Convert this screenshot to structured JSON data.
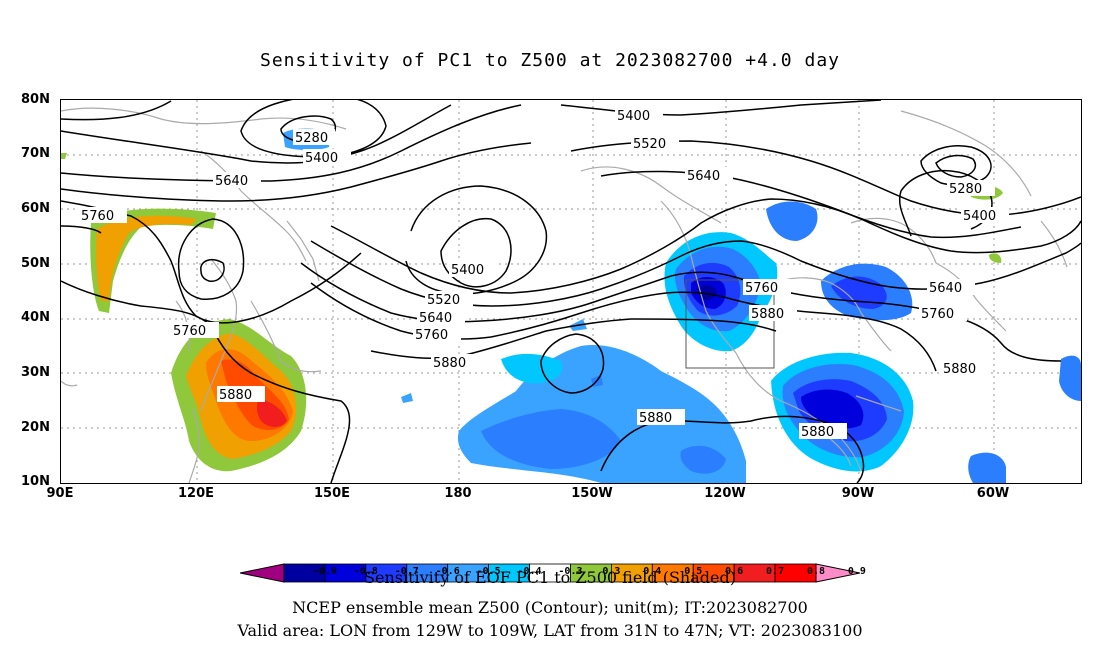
{
  "title": "Sensitivity of PC1 to Z500 at 2023082700 +4.0 day",
  "y_ticks": [
    "80N",
    "70N",
    "60N",
    "50N",
    "40N",
    "30N",
    "20N",
    "10N"
  ],
  "x_ticks": [
    "90E",
    "120E",
    "150E",
    "180",
    "150W",
    "120W",
    "90W",
    "60W"
  ],
  "contour_labels": {
    "c1": "5400",
    "c2": "5280",
    "c3": "5400",
    "c4": "5520",
    "c5": "5640",
    "c6": "5280",
    "c7": "5400",
    "c8": "5640",
    "c9": "5760",
    "c10": "5400",
    "c11": "5520",
    "c12": "5640",
    "c13": "5760",
    "c14": "5880",
    "c15": "5760",
    "c16": "5880",
    "c17": "5640",
    "c18": "5760",
    "c19": "5760",
    "c20": "5880",
    "c21": "5880",
    "c22": "5880",
    "c23": "5880"
  },
  "colorbar": {
    "labels": [
      "-0.9",
      "-0.8",
      "-0.7",
      "-0.6",
      "-0.5",
      "-0.4",
      "-0.3",
      "0.3",
      "0.4",
      "0.5",
      "0.6",
      "0.7",
      "0.8",
      "0.9"
    ],
    "colors": [
      "#a0007f",
      "#0000a0",
      "#0000dc",
      "#1e3cff",
      "#2b7fff",
      "#3aa3ff",
      "#00c8ff",
      "#ffffff",
      "#8fc83a",
      "#f0a000",
      "#ff7800",
      "#ff4b00",
      "#f01e1e",
      "#ff0000",
      "#ff8cc8"
    ]
  },
  "caption": {
    "line1": "Sensitivity of EOF PC1 to Z500 field (Shaded)",
    "line2": "NCEP ensemble mean Z500 (Contour); unit(m); IT:2023082700",
    "line3": "Valid area: LON from 129W to 109W, LAT from 31N to 47N; VT: 2023083100"
  }
}
